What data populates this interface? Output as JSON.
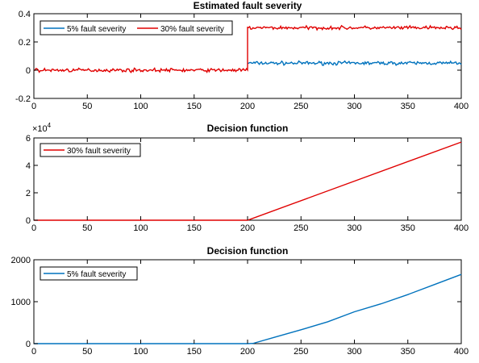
{
  "chart_data": [
    {
      "type": "line",
      "title": "Estimated fault severity",
      "xlabel": "",
      "ylabel": "",
      "xlim": [
        0,
        400
      ],
      "ylim": [
        -0.2,
        0.4
      ],
      "xticks": [
        0,
        50,
        100,
        150,
        200,
        250,
        300,
        350,
        400
      ],
      "xtick_labels": [
        "0",
        "50",
        "100",
        "150",
        "200",
        "250",
        "300",
        "350",
        "400"
      ],
      "yticks": [
        -0.2,
        0,
        0.2,
        0.4
      ],
      "ytick_labels": [
        "-0.2",
        "0",
        "0.2",
        "0.4"
      ],
      "legend_position": "top-left",
      "series": [
        {
          "name": "5% fault severity",
          "color": "#0072BD",
          "x": [
            200,
            400
          ],
          "segments": [
            {
              "x_from": 200,
              "x_to": 400,
              "mean": 0.05,
              "noise": 0.012
            }
          ]
        },
        {
          "name": "30% fault severity",
          "color": "#E00000",
          "x": [
            0,
            400
          ],
          "segments": [
            {
              "x_from": 0,
              "x_to": 200,
              "mean": 0.0,
              "noise": 0.012
            },
            {
              "x_from": 200,
              "x_to": 400,
              "mean": 0.3,
              "noise": 0.012
            }
          ]
        }
      ]
    },
    {
      "type": "line",
      "title": "Decision function",
      "xlabel": "",
      "ylabel": "",
      "exponent_label": "×10",
      "exponent_value": "4",
      "xlim": [
        0,
        400
      ],
      "ylim": [
        0,
        6
      ],
      "xticks": [
        0,
        50,
        100,
        150,
        200,
        250,
        300,
        350,
        400
      ],
      "xtick_labels": [
        "0",
        "50",
        "100",
        "150",
        "200",
        "250",
        "300",
        "350",
        "400"
      ],
      "yticks": [
        0,
        2,
        4,
        6
      ],
      "ytick_labels": [
        "0",
        "2",
        "4",
        "6"
      ],
      "legend_position": "top-left",
      "series": [
        {
          "name": "30% fault severity",
          "color": "#E00000",
          "x": [
            0,
            200,
            400
          ],
          "y": [
            0,
            0,
            5.7
          ]
        }
      ]
    },
    {
      "type": "line",
      "title": "Decision function",
      "xlabel": "",
      "ylabel": "",
      "xlim": [
        0,
        400
      ],
      "ylim": [
        0,
        2000
      ],
      "xticks": [
        0,
        50,
        100,
        150,
        200,
        250,
        300,
        350,
        400
      ],
      "xtick_labels": [
        "0",
        "50",
        "100",
        "150",
        "200",
        "250",
        "300",
        "350",
        "400"
      ],
      "yticks": [
        0,
        1000,
        2000
      ],
      "ytick_labels": [
        "0",
        "1000",
        "2000"
      ],
      "legend_position": "top-left",
      "series": [
        {
          "name": "5% fault severity",
          "color": "#0072BD",
          "x": [
            0,
            200,
            205,
            225,
            250,
            275,
            300,
            325,
            350,
            375,
            400
          ],
          "y": [
            0,
            0,
            5,
            150,
            330,
            520,
            760,
            950,
            1170,
            1410,
            1650
          ]
        }
      ]
    }
  ]
}
